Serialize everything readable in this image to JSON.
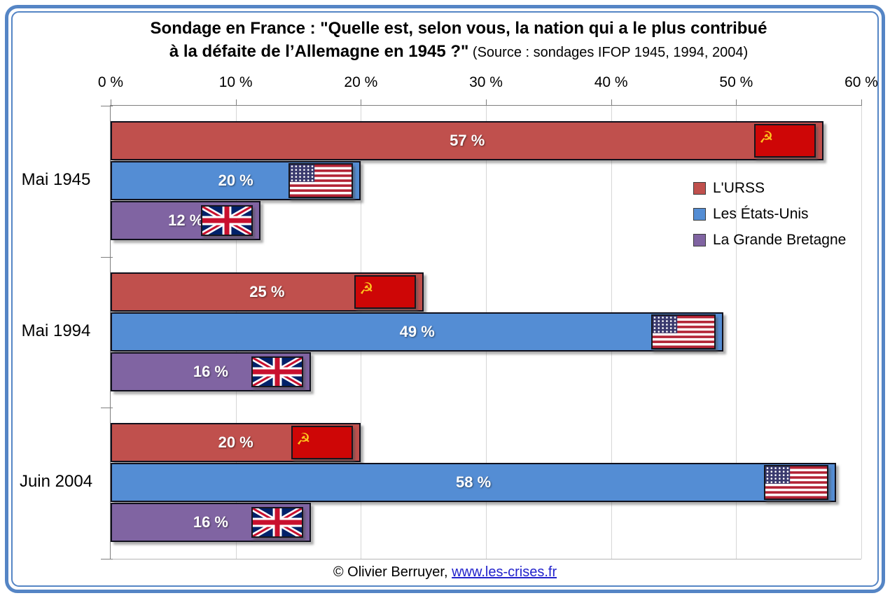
{
  "frame": {
    "border_color": "#5585c5"
  },
  "title": {
    "line1": "Sondage en France : \"Quelle est, selon vous, la nation qui a le plus contribué",
    "line2_bold": "à la défaite de l’Allemagne en 1945 ?\"",
    "line2_source": " (Source : sondages IFOP 1945, 1994, 2004)"
  },
  "footer": {
    "copyright": "© Olivier Berruyer, ",
    "link": "www.les-crises.fr",
    "link_color": "#2222cc"
  },
  "icons": {
    "hammer_sickle_glyph": "☭"
  },
  "chart_data": {
    "type": "bar",
    "orientation": "horizontal",
    "title": "Sondage en France : \"Quelle est, selon vous, la nation qui a le plus contribué à la défaite de l’Allemagne en 1945 ?\"",
    "subtitle": "(Source : sondages IFOP 1945, 1994, 2004)",
    "categories": [
      "Mai 1945",
      "Mai 1994",
      "Juin 2004"
    ],
    "series": [
      {
        "name": "L'URSS",
        "color": "#c0504d",
        "flag": "ussr",
        "values": [
          57,
          25,
          20
        ]
      },
      {
        "name": "Les États-Unis",
        "color": "#548dd4",
        "flag": "usa",
        "values": [
          20,
          49,
          58
        ]
      },
      {
        "name": "La Grande Bretagne",
        "color": "#8064a2",
        "flag": "uk",
        "values": [
          12,
          16,
          16
        ]
      }
    ],
    "value_labels": [
      [
        "57 %",
        "25 %",
        "20 %"
      ],
      [
        "20 %",
        "49 %",
        "58 %"
      ],
      [
        "12 %",
        "16 %",
        "16 %"
      ]
    ],
    "value_label_suffix": " %",
    "xlim": [
      0,
      60
    ],
    "x_tick_values": [
      0,
      10,
      20,
      30,
      40,
      50,
      60
    ],
    "x_tick_labels": [
      "0 %",
      "10 %",
      "20 %",
      "30 %",
      "40 %",
      "50 %",
      "60 %"
    ],
    "grid": true,
    "legend_position": "right-inside",
    "legend": [
      "L'URSS",
      "Les États-Unis",
      "La Grande Bretagne"
    ]
  }
}
